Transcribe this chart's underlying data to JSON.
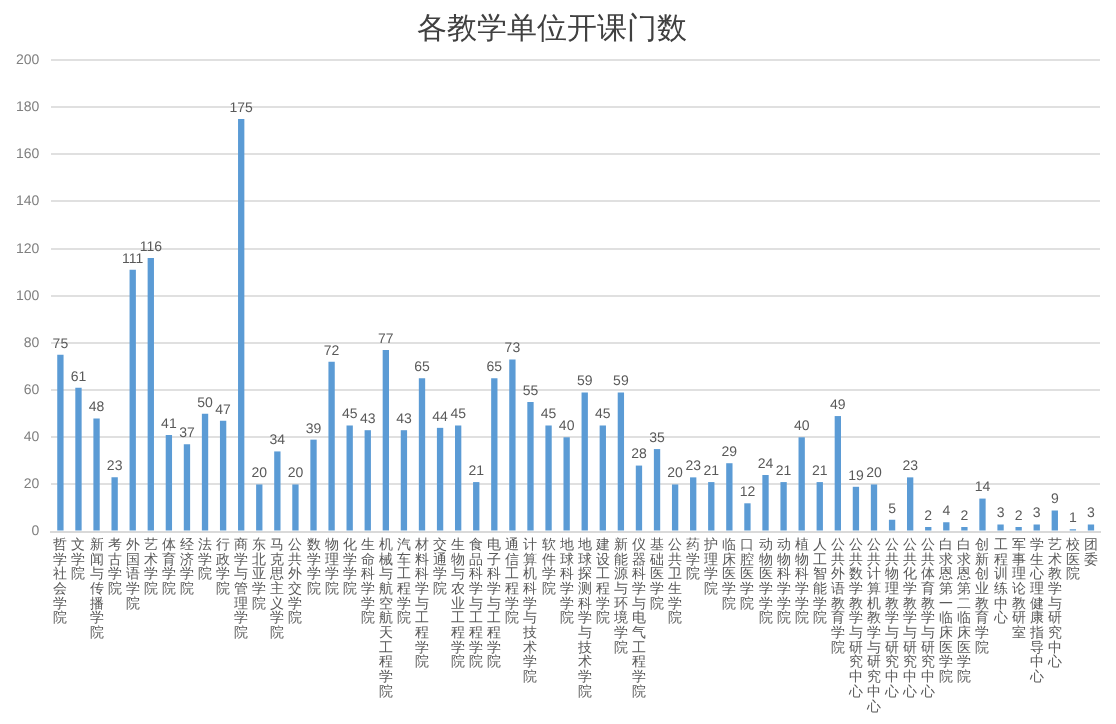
{
  "chart_data": {
    "type": "bar",
    "title": "各教学单位开课门数",
    "categories": [
      "哲学社会学院",
      "文学院",
      "新闻与传播学院",
      "考古学院",
      "外国语学院",
      "艺术学院",
      "体育学院",
      "经济学院",
      "法学院",
      "行政学院",
      "商学与管理学院",
      "东北亚学院",
      "马克思主义学院",
      "公共外交学院",
      "数学学院",
      "物理学院",
      "化学学院",
      "生命科学学院",
      "机械与航空航天工程学院",
      "汽车工程学院",
      "材料科学与工程学院",
      "交通学院",
      "生物与农业工程学院",
      "食品科学与工程学院",
      "电子科学与工程学院",
      "通信工程学院",
      "计算机科学与技术学院",
      "软件学院",
      "地球科学学院",
      "地球探测科学与技术学院",
      "建设工程学院",
      "新能源与环境学院",
      "仪器科学与电气工程学院",
      "基础医学院",
      "公共卫生学院",
      "药学院",
      "护理学院",
      "临床医学院",
      "口腔医学院",
      "动物医学学院",
      "动物科学学院",
      "植物科学学院",
      "人工智能学院",
      "公共外语教育学院",
      "公共数学教学与研究中心",
      "公共计算机教学与研究中心",
      "公共物理教学与研究中心",
      "公共化学教学与研究中心",
      "公共体育教学与研究中心",
      "白求恩第一临床医学院",
      "白求恩第二临床医学院",
      "创新创业教育学院",
      "工程训练中心",
      "军事理论教研室",
      "学生心理健康指导中心",
      "艺术教学与研究中心",
      "校医院",
      "团委"
    ],
    "values": [
      75,
      61,
      48,
      23,
      111,
      116,
      41,
      37,
      50,
      47,
      175,
      20,
      34,
      20,
      39,
      72,
      45,
      43,
      77,
      43,
      65,
      44,
      45,
      21,
      65,
      73,
      55,
      45,
      40,
      59,
      45,
      59,
      28,
      35,
      20,
      23,
      21,
      29,
      12,
      24,
      21,
      40,
      21,
      49,
      19,
      20,
      5,
      23,
      2,
      4,
      2,
      14,
      3,
      2,
      3,
      9,
      1,
      3
    ],
    "color": "#5b9bd5",
    "ylim": [
      0,
      200
    ],
    "yticks": [
      0,
      20,
      40,
      60,
      80,
      100,
      120,
      140,
      160,
      180,
      200
    ],
    "grid": "y",
    "data_labels": true,
    "legend": false
  }
}
